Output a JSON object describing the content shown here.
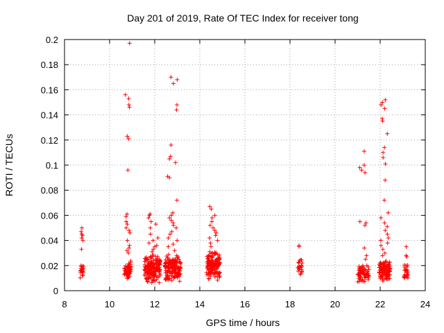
{
  "chart_data": {
    "type": "scatter",
    "title": "Day 201 of 2019, Rate Of TEC Index for receiver tong",
    "xlabel": "GPS time / hours",
    "ylabel": "ROTI / TECUs",
    "xlim": [
      8,
      24
    ],
    "ylim": [
      0,
      0.2
    ],
    "xticks": [
      8,
      10,
      12,
      14,
      16,
      18,
      20,
      22,
      24
    ],
    "yticks": [
      0,
      0.02,
      0.04,
      0.06,
      0.08,
      0.1,
      0.12,
      0.14,
      0.16,
      0.18,
      0.2
    ],
    "ytick_labels": [
      "0",
      "0.02",
      "0.04",
      "0.06",
      "0.08",
      "0.1",
      "0.12",
      "0.14",
      "0.16",
      "0.18",
      "0.2"
    ],
    "grid": true,
    "marker": "+",
    "color": "#ff0000",
    "clusters": [
      {
        "x_range": [
          8.7,
          8.85
        ],
        "y_base": [
          0.01,
          0.024
        ],
        "extra_y": [
          0.033,
          0.04,
          0.042,
          0.044,
          0.045,
          0.047,
          0.05
        ],
        "count": 24
      },
      {
        "x_range": [
          10.65,
          10.95
        ],
        "y_base": [
          0.008,
          0.025
        ],
        "extra_y": [
          0.03,
          0.032,
          0.034,
          0.036,
          0.04,
          0.046,
          0.048,
          0.05,
          0.053,
          0.055,
          0.059,
          0.061,
          0.096,
          0.121,
          0.123,
          0.146,
          0.148,
          0.153,
          0.156,
          0.197
        ],
        "count": 55
      },
      {
        "x_range": [
          11.55,
          12.25
        ],
        "y_base": [
          0.005,
          0.03
        ],
        "extra_y": [
          0.031,
          0.033,
          0.035,
          0.036,
          0.038,
          0.04,
          0.042,
          0.045,
          0.05,
          0.053,
          0.055,
          0.058,
          0.06,
          0.061
        ],
        "count": 170
      },
      {
        "x_range": [
          12.45,
          13.15
        ],
        "y_base": [
          0.007,
          0.03
        ],
        "extra_y": [
          0.032,
          0.035,
          0.037,
          0.04,
          0.042,
          0.045,
          0.047,
          0.05,
          0.052,
          0.054,
          0.056,
          0.058,
          0.06,
          0.062,
          0.072,
          0.09,
          0.091,
          0.102,
          0.105,
          0.107,
          0.116,
          0.144,
          0.148,
          0.165,
          0.168,
          0.17
        ],
        "count": 160
      },
      {
        "x_range": [
          14.3,
          14.9
        ],
        "y_base": [
          0.007,
          0.033
        ],
        "extra_y": [
          0.035,
          0.038,
          0.04,
          0.042,
          0.044,
          0.046,
          0.048,
          0.05,
          0.052,
          0.055,
          0.058,
          0.06,
          0.065,
          0.067
        ],
        "count": 140
      },
      {
        "x_range": [
          18.35,
          18.55
        ],
        "y_base": [
          0.008,
          0.026
        ],
        "extra_y": [
          0.035,
          0.036
        ],
        "count": 24
      },
      {
        "x_range": [
          21.0,
          21.5
        ],
        "y_base": [
          0.006,
          0.022
        ],
        "extra_y": [
          0.025,
          0.028,
          0.034,
          0.052,
          0.054,
          0.055,
          0.094,
          0.096,
          0.098,
          0.1,
          0.111
        ],
        "count": 70
      },
      {
        "x_range": [
          21.95,
          22.45
        ],
        "y_base": [
          0.007,
          0.025
        ],
        "extra_y": [
          0.028,
          0.03,
          0.033,
          0.036,
          0.038,
          0.04,
          0.042,
          0.045,
          0.048,
          0.051,
          0.054,
          0.058,
          0.062,
          0.072,
          0.088,
          0.101,
          0.106,
          0.11,
          0.114,
          0.125,
          0.135,
          0.137,
          0.145,
          0.148,
          0.15,
          0.152
        ],
        "count": 115
      },
      {
        "x_range": [
          23.05,
          23.25
        ],
        "y_base": [
          0.007,
          0.022
        ],
        "extra_y": [
          0.027,
          0.028,
          0.035
        ],
        "count": 24
      }
    ]
  }
}
